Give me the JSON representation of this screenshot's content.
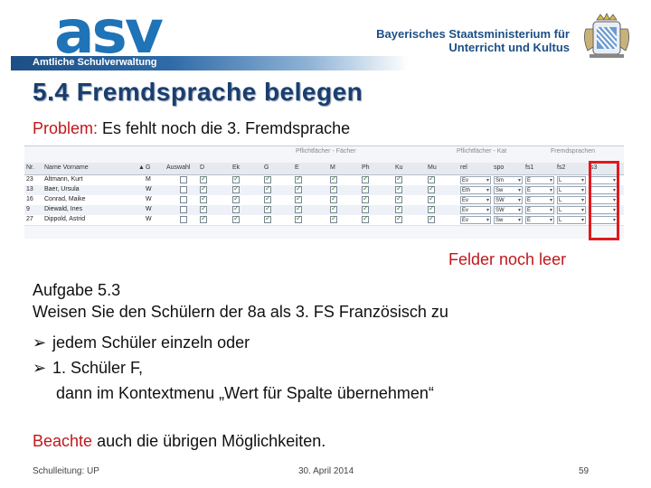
{
  "header": {
    "logo_text": "asv",
    "ribbon_text": "Amtliche Schulverwaltung",
    "ministry_line1": "Bayerisches Staatsministerium für",
    "ministry_line2": "Unterricht und Kultus",
    "crest_icon": "bavarian-crest-icon"
  },
  "title": "5.4 Fremdsprache belegen",
  "problem": {
    "label": "Problem:",
    "text": " Es fehlt noch die 3. Fremdsprache"
  },
  "table": {
    "group_headers": [
      "Pflichtfächer - Fächer",
      "Pflichtfächer - Kat",
      "Fremdsprachen"
    ],
    "columns": [
      "Nr.",
      "Name Vorname",
      "G",
      "Auswahl",
      "D",
      "Ek",
      "G",
      "E",
      "M",
      "Ph",
      "Ku",
      "Mu",
      "rel",
      "spo",
      "fs1",
      "fs2",
      "fs3"
    ],
    "rows": [
      {
        "nr": "23",
        "name": "Altmann, Kurt",
        "g": "M",
        "rel": "Ev",
        "spo": "Sm",
        "fs1": "E",
        "fs2": "L"
      },
      {
        "nr": "13",
        "name": "Baer, Ursula",
        "g": "W",
        "rel": "Eth",
        "spo": "Sw",
        "fs1": "E",
        "fs2": "L"
      },
      {
        "nr": "16",
        "name": "Conrad, Maike",
        "g": "W",
        "rel": "Ev",
        "spo": "SW",
        "fs1": "E",
        "fs2": "L"
      },
      {
        "nr": "9",
        "name": "Diewald, Ines",
        "g": "W",
        "rel": "Ev",
        "spo": "SW",
        "fs1": "E",
        "fs2": "L"
      },
      {
        "nr": "27",
        "name": "Dippold, Astrid",
        "g": "W",
        "rel": "Ev",
        "spo": "Sw",
        "fs1": "E",
        "fs2": "L"
      }
    ]
  },
  "callout": "Felder noch leer",
  "task": {
    "heading": "Aufgabe 5.3",
    "line": "Weisen Sie den Schülern der 8a als 3. FS Französisch zu",
    "bullet1": "jedem Schüler einzeln oder",
    "bullet2": "1. Schüler F,",
    "bullet2_cont": "dann im Kontextmenu „Wert für Spalte übernehmen“"
  },
  "note": {
    "label": "Beachte",
    "text": " auch die übrigen Möglichkeiten."
  },
  "footer": {
    "left": "Schulleitung: UP",
    "center": "30. April 2014",
    "page": "59"
  }
}
